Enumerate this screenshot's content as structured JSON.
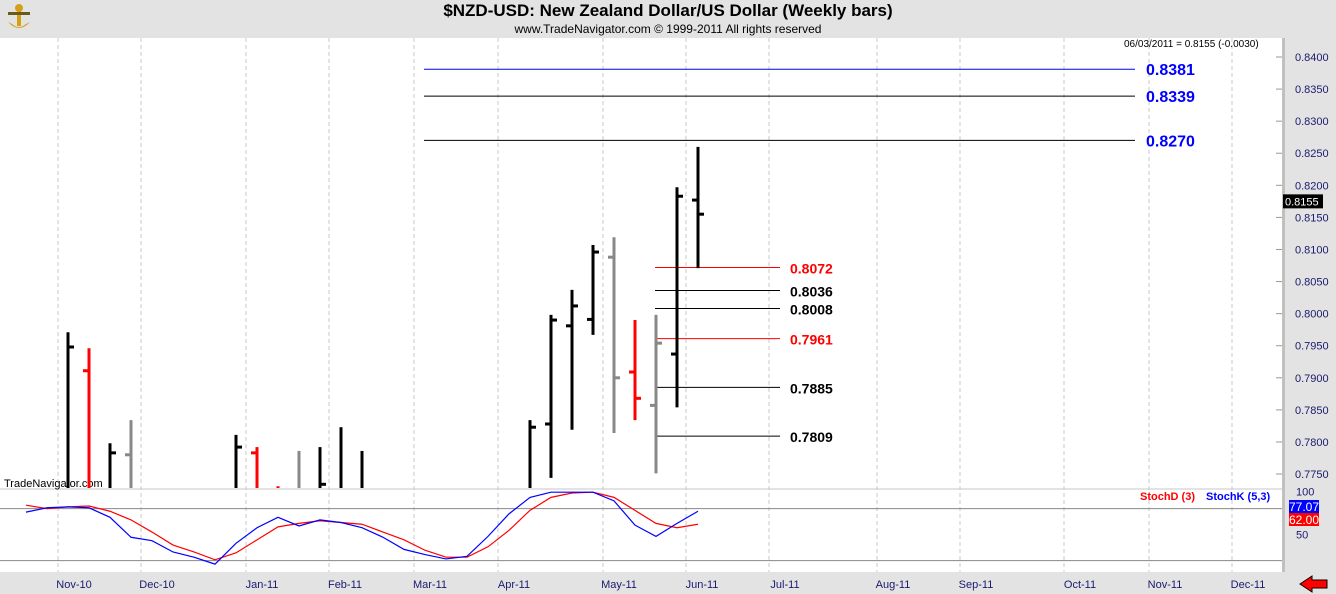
{
  "header": {
    "title": "$NZD-USD:  New Zealand Dollar/US Dollar  (Weekly bars)",
    "subtitle": "www.TradeNavigator.com © 1999-2011 All rights reserved",
    "last_readout": "06/03/2011 = 0.8155 (-0.0030)",
    "watermark": "TradeNavigator.com"
  },
  "chart_data": {
    "type": "ohlc",
    "title": "$NZD-USD:  New Zealand Dollar/US Dollar  (Weekly bars)",
    "ylim": [
      0.7725,
      0.8425
    ],
    "y_ticks": [
      "0.8400",
      "0.8350",
      "0.8300",
      "0.8250",
      "0.8200",
      "0.8150",
      "0.8100",
      "0.8050",
      "0.8000",
      "0.7950",
      "0.7900",
      "0.7850",
      "0.7800",
      "0.7750"
    ],
    "x_ticks": [
      "Nov-10",
      "Dec-10",
      "Jan-11",
      "Feb-11",
      "Mar-11",
      "Apr-11",
      "May-11",
      "Jun-11",
      "Jul-11",
      "Aug-11",
      "Sep-11",
      "Oct-11",
      "Nov-11",
      "Dec-11"
    ],
    "current_price_label": "0.8155",
    "bars": [
      {
        "w": 2,
        "h": 0.7971,
        "l": 0.7728,
        "c": 0.7948,
        "col": "#000000"
      },
      {
        "w": 3,
        "h": 0.7946,
        "l": 0.7728,
        "o": 0.7911,
        "col": "#ff0000"
      },
      {
        "w": 4,
        "h": 0.7798,
        "l": 0.7728,
        "c": 0.7783,
        "col": "#000000"
      },
      {
        "w": 5,
        "h": 0.7834,
        "l": 0.7728,
        "o": 0.778,
        "col": "#888888"
      },
      {
        "w": 10,
        "h": 0.7811,
        "l": 0.7728,
        "c": 0.7792,
        "col": "#000000"
      },
      {
        "w": 11,
        "h": 0.7792,
        "l": 0.7728,
        "o": 0.7783,
        "col": "#ff0000"
      },
      {
        "w": 12,
        "h": 0.7731,
        "l": 0.7728,
        "col": "#ff0000"
      },
      {
        "w": 13,
        "h": 0.7786,
        "l": 0.7728,
        "col": "#888888"
      },
      {
        "w": 14,
        "h": 0.7792,
        "l": 0.7728,
        "c": 0.7734,
        "col": "#000000"
      },
      {
        "w": 15,
        "h": 0.7823,
        "l": 0.7728,
        "col": "#000000"
      },
      {
        "w": 16,
        "h": 0.7786,
        "l": 0.7728,
        "col": "#000000"
      },
      {
        "w": 24,
        "h": 0.7834,
        "l": 0.7728,
        "c": 0.7823,
        "col": "#000000"
      },
      {
        "w": 25,
        "h": 0.7998,
        "l": 0.7744,
        "o": 0.7828,
        "c": 0.799,
        "col": "#000000"
      },
      {
        "w": 26,
        "h": 0.8037,
        "l": 0.7819,
        "o": 0.7981,
        "c": 0.8012,
        "col": "#000000"
      },
      {
        "w": 27,
        "h": 0.8107,
        "l": 0.7967,
        "o": 0.7991,
        "c": 0.8096,
        "col": "#000000"
      },
      {
        "w": 28,
        "h": 0.8119,
        "l": 0.7814,
        "o": 0.8088,
        "c": 0.79,
        "col": "#888888"
      },
      {
        "w": 29,
        "h": 0.799,
        "l": 0.7834,
        "o": 0.7909,
        "c": 0.7868,
        "col": "#ff0000"
      },
      {
        "w": 30,
        "h": 0.7998,
        "l": 0.7751,
        "o": 0.7857,
        "c": 0.7954,
        "col": "#888888"
      },
      {
        "w": 31,
        "h": 0.8197,
        "l": 0.7854,
        "o": 0.7937,
        "c": 0.8183,
        "col": "#000000"
      },
      {
        "w": 32,
        "h": 0.826,
        "l": 0.8071,
        "o": 0.8177,
        "c": 0.8155,
        "col": "#000000"
      }
    ],
    "levels_upper": [
      {
        "label": "0.8381",
        "value": 0.8381,
        "color": "#0000ff"
      },
      {
        "label": "0.8339",
        "value": 0.8339,
        "color": "#000000"
      },
      {
        "label": "0.8270",
        "value": 0.827,
        "color": "#000000"
      }
    ],
    "levels_lower": [
      {
        "label": "0.8072",
        "value": 0.8072,
        "color": "#ff0000"
      },
      {
        "label": "0.8036",
        "value": 0.8036,
        "color": "#000000"
      },
      {
        "label": "0.8008",
        "value": 0.8008,
        "color": "#000000"
      },
      {
        "label": "0.7961",
        "value": 0.7961,
        "color": "#ff0000"
      },
      {
        "label": "0.7885",
        "value": 0.7885,
        "color": "#000000"
      },
      {
        "label": "0.7809",
        "value": 0.7809,
        "color": "#000000"
      }
    ],
    "indicator": {
      "ylim": [
        0,
        100
      ],
      "ticks": [
        "100",
        "50"
      ],
      "ref_lines": [
        80,
        20
      ],
      "legend": [
        {
          "name": "StochD (3)",
          "color": "#ff0000"
        },
        {
          "name": "StochK (5,3)",
          "color": "#0000ff"
        }
      ],
      "k_label": "77.07",
      "d_label": "62.00",
      "stochK": [
        76,
        81,
        82,
        81,
        70,
        47,
        43,
        30,
        24,
        16,
        40,
        58,
        70,
        60,
        67,
        64,
        58,
        47,
        33,
        27,
        22,
        25,
        48,
        74,
        93,
        99,
        99,
        99,
        89,
        61,
        48,
        63,
        77
      ],
      "stochD": [
        84,
        80,
        82,
        83,
        77,
        67,
        53,
        38,
        30,
        21,
        29,
        44,
        59,
        63,
        66,
        64,
        62,
        53,
        44,
        32,
        24,
        24,
        36,
        55,
        78,
        93,
        98,
        99,
        93,
        78,
        63,
        58,
        62
      ]
    }
  }
}
